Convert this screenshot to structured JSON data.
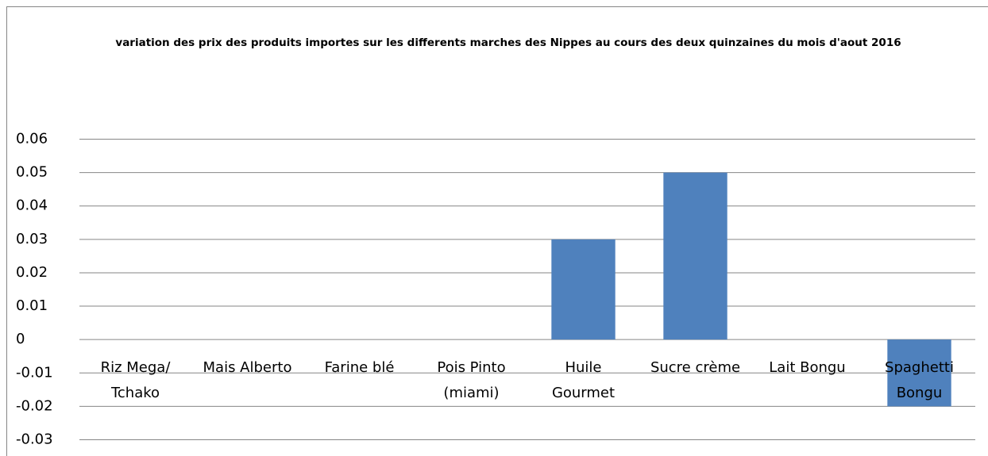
{
  "chart_data": {
    "type": "bar",
    "title": "variation des prix des produits importes sur les differents marches des Nippes au cours des deux quinzaines du mois d'aout 2016",
    "categories": [
      "Riz Mega/\nTchako",
      "Mais Alberto",
      "Farine blé",
      "Pois Pinto\n(miami)",
      "Huile\nGourmet",
      "Sucre crème",
      "Lait Bongu",
      "Spaghetti\nBongu"
    ],
    "values": [
      0,
      0,
      0,
      0,
      0.03,
      0.05,
      0,
      -0.02
    ],
    "color": "#4f81bd",
    "ylim": [
      -0.03,
      0.06
    ],
    "yticks": [
      -0.03,
      -0.02,
      -0.01,
      0,
      0.01,
      0.02,
      0.03,
      0.04,
      0.05,
      0.06
    ],
    "grid": true
  }
}
